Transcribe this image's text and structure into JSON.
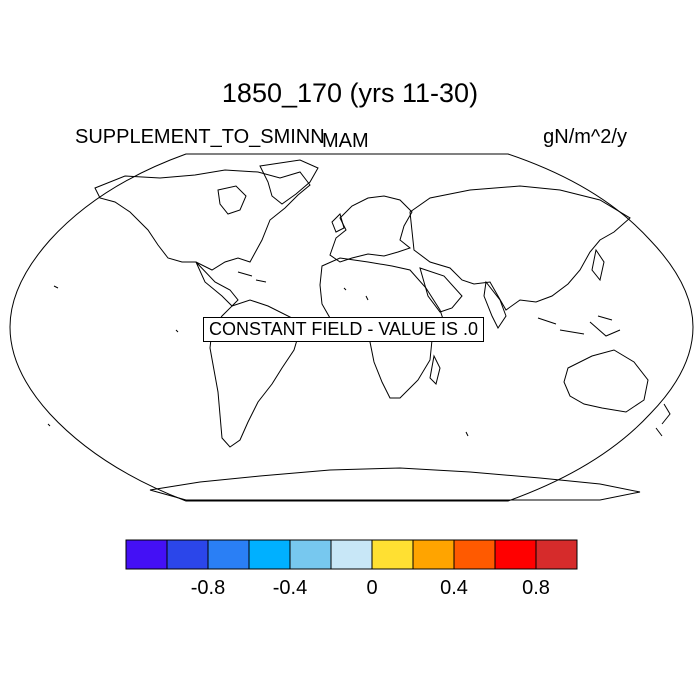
{
  "plot": {
    "title": "1850_170 (yrs 11-30)",
    "variable": "SUPPLEMENT_TO_SMINN",
    "season": "MAM",
    "units": "gN/m^2/y",
    "message": "CONSTANT FIELD - VALUE IS .0"
  },
  "colorbar": {
    "colors": [
      "#4410f5",
      "#2b46ea",
      "#2a7ff5",
      "#00b0ff",
      "#77c8ef",
      "#c8e7f7",
      "#ffe032",
      "#ffa400",
      "#ff5a00",
      "#ff0000",
      "#d62b2b"
    ],
    "tick_labels": [
      "-0.8",
      "-0.4",
      "0",
      "0.4",
      "0.8"
    ],
    "tick_box_index": [
      2,
      4,
      6,
      8,
      10
    ]
  }
}
